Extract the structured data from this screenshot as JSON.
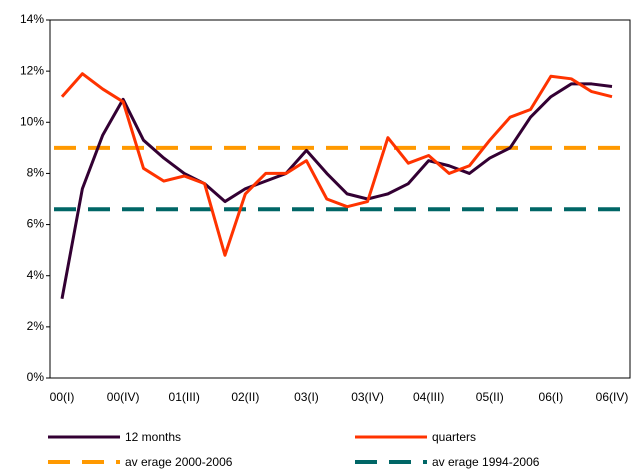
{
  "chart_data": {
    "type": "line",
    "categories": [
      "00(I)",
      null,
      null,
      "00(IV)",
      null,
      null,
      "01(III)",
      null,
      null,
      "02(II)",
      null,
      null,
      "03(I)",
      null,
      null,
      "03(IV)",
      null,
      null,
      "04(III)",
      null,
      null,
      "05(II)",
      null,
      null,
      "06(I)",
      null,
      null,
      "06(IV)"
    ],
    "series": [
      {
        "name": "12 months",
        "color": "#330033",
        "values": [
          3.1,
          7.4,
          9.5,
          10.9,
          9.3,
          8.6,
          8.0,
          7.6,
          6.9,
          7.4,
          7.7,
          8.0,
          8.9,
          8.0,
          7.2,
          7.0,
          7.2,
          7.6,
          8.5,
          8.3,
          8.0,
          8.6,
          9.0,
          10.2,
          11.0,
          11.5,
          11.5,
          11.4
        ]
      },
      {
        "name": "quarters",
        "color": "#ff3300",
        "values": [
          11.0,
          11.9,
          11.3,
          10.8,
          8.2,
          7.7,
          7.9,
          7.6,
          4.8,
          7.2,
          8.0,
          8.0,
          8.5,
          7.0,
          6.7,
          6.9,
          9.4,
          8.4,
          8.7,
          8.0,
          8.3,
          9.3,
          10.2,
          10.5,
          11.8,
          11.7,
          11.2,
          11.0
        ]
      }
    ],
    "ref_lines": [
      {
        "name": "av erage 2000-2006",
        "color": "#ff9900",
        "value": 9.0
      },
      {
        "name": "av erage 1994-2006",
        "color": "#006666",
        "value": 6.6
      }
    ],
    "ylim": [
      0,
      14
    ],
    "yticks": [
      {
        "value": 0,
        "label": "0%"
      },
      {
        "value": 2,
        "label": "2%"
      },
      {
        "value": 4,
        "label": "4%"
      },
      {
        "value": 6,
        "label": "6%"
      },
      {
        "value": 8,
        "label": "8%"
      },
      {
        "value": 10,
        "label": "10%"
      },
      {
        "value": 12,
        "label": "12%"
      },
      {
        "value": 14,
        "label": "14%"
      }
    ],
    "grid": false
  }
}
